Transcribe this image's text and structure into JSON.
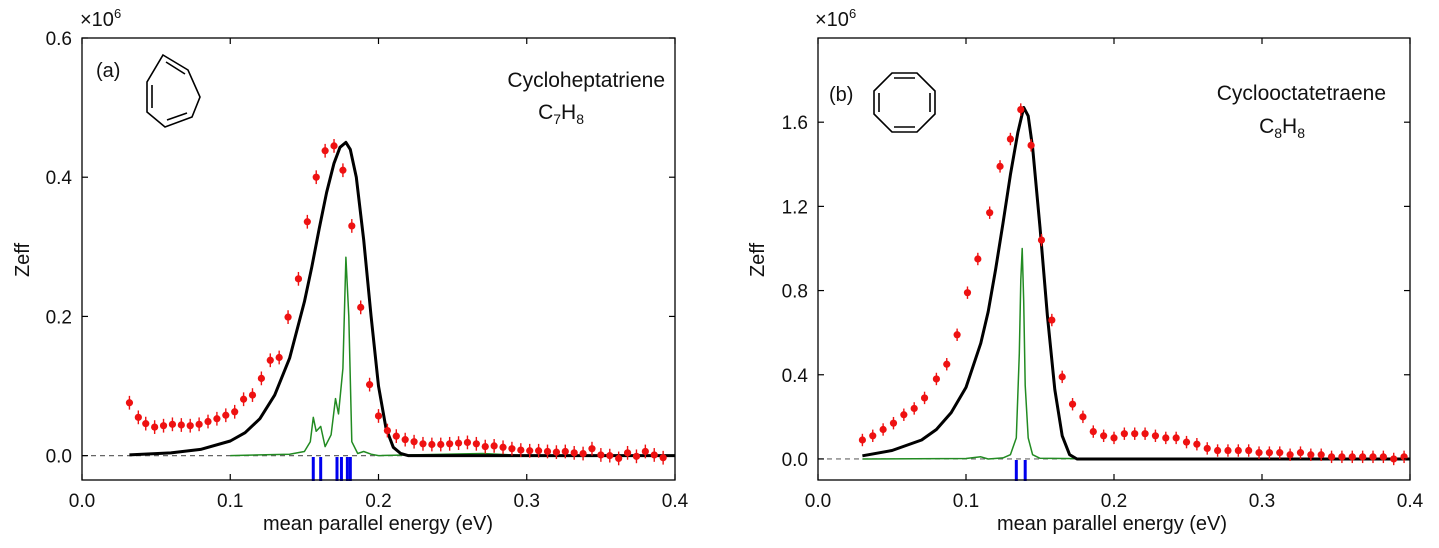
{
  "figure": {
    "xlabel": "mean parallel energy (eV)",
    "ylabel": "Zeff",
    "multiplier_text": "×10",
    "multiplier_exp": "6"
  },
  "chart_data": [
    {
      "panel_label": "(a)",
      "type": "line",
      "title": "Cycloheptatriene",
      "formula": [
        "C",
        "7",
        "H",
        "8"
      ],
      "xlabel": "mean parallel energy (eV)",
      "ylabel": "Zeff",
      "xlim": [
        0.0,
        0.4
      ],
      "ylim": [
        -0.035,
        0.6
      ],
      "y_multiplier": "1e6",
      "xticks": [
        0.0,
        0.1,
        0.2,
        0.3,
        0.4
      ],
      "xtick_labels": [
        "0.0",
        "0.1",
        "0.2",
        "0.3",
        "0.4"
      ],
      "yticks": [
        0.0,
        0.2,
        0.4,
        0.6
      ],
      "ytick_labels": [
        "0.0",
        "0.2",
        "0.4",
        "0.6"
      ],
      "colors": {
        "points": "#ee1111",
        "black_curve": "#000000",
        "green_curve": "#228b22",
        "blue_sticks": "#0000ee"
      },
      "series": [
        {
          "name": "experimental data",
          "style": "points with error bars",
          "points": [
            [
              0.032,
              0.076
            ],
            [
              0.038,
              0.055
            ],
            [
              0.043,
              0.046
            ],
            [
              0.049,
              0.041
            ],
            [
              0.055,
              0.043
            ],
            [
              0.061,
              0.045
            ],
            [
              0.067,
              0.044
            ],
            [
              0.073,
              0.043
            ],
            [
              0.079,
              0.045
            ],
            [
              0.085,
              0.049
            ],
            [
              0.091,
              0.053
            ],
            [
              0.097,
              0.058
            ],
            [
              0.103,
              0.063
            ],
            [
              0.109,
              0.081
            ],
            [
              0.115,
              0.087
            ],
            [
              0.121,
              0.111
            ],
            [
              0.127,
              0.137
            ],
            [
              0.133,
              0.141
            ],
            [
              0.139,
              0.199
            ],
            [
              0.146,
              0.254
            ],
            [
              0.152,
              0.336
            ],
            [
              0.158,
              0.4
            ],
            [
              0.164,
              0.438
            ],
            [
              0.17,
              0.445
            ],
            [
              0.176,
              0.41
            ],
            [
              0.182,
              0.33
            ],
            [
              0.188,
              0.213
            ],
            [
              0.194,
              0.102
            ],
            [
              0.2,
              0.057
            ],
            [
              0.206,
              0.036
            ],
            [
              0.212,
              0.028
            ],
            [
              0.218,
              0.023
            ],
            [
              0.224,
              0.02
            ],
            [
              0.23,
              0.017
            ],
            [
              0.236,
              0.016
            ],
            [
              0.242,
              0.016
            ],
            [
              0.248,
              0.017
            ],
            [
              0.254,
              0.018
            ],
            [
              0.26,
              0.019
            ],
            [
              0.266,
              0.017
            ],
            [
              0.272,
              0.013
            ],
            [
              0.278,
              0.014
            ],
            [
              0.284,
              0.012
            ],
            [
              0.29,
              0.01
            ],
            [
              0.296,
              0.008
            ],
            [
              0.302,
              0.007
            ],
            [
              0.308,
              0.007
            ],
            [
              0.314,
              0.006
            ],
            [
              0.32,
              0.005
            ],
            [
              0.326,
              0.006
            ],
            [
              0.332,
              0.004
            ],
            [
              0.338,
              0.003
            ],
            [
              0.344,
              0.01
            ],
            [
              0.35,
              0.001
            ],
            [
              0.356,
              0.0
            ],
            [
              0.362,
              -0.004
            ],
            [
              0.368,
              0.004
            ],
            [
              0.374,
              -0.001
            ],
            [
              0.38,
              0.006
            ],
            [
              0.386,
              0.001
            ],
            [
              0.392,
              -0.003
            ]
          ]
        },
        {
          "name": "black model curve",
          "style": "thick line",
          "points": [
            [
              0.032,
              0.001
            ],
            [
              0.06,
              0.004
            ],
            [
              0.08,
              0.009
            ],
            [
              0.1,
              0.021
            ],
            [
              0.11,
              0.033
            ],
            [
              0.12,
              0.053
            ],
            [
              0.13,
              0.087
            ],
            [
              0.14,
              0.14
            ],
            [
              0.15,
              0.221
            ],
            [
              0.155,
              0.271
            ],
            [
              0.16,
              0.326
            ],
            [
              0.165,
              0.378
            ],
            [
              0.17,
              0.42
            ],
            [
              0.174,
              0.443
            ],
            [
              0.178,
              0.45
            ],
            [
              0.181,
              0.44
            ],
            [
              0.185,
              0.4
            ],
            [
              0.19,
              0.31
            ],
            [
              0.195,
              0.2
            ],
            [
              0.2,
              0.1
            ],
            [
              0.205,
              0.04
            ],
            [
              0.21,
              0.012
            ],
            [
              0.215,
              0.003
            ],
            [
              0.22,
              0.0
            ],
            [
              0.3,
              0.0
            ],
            [
              0.4,
              0.0
            ]
          ]
        },
        {
          "name": "green spectrum",
          "style": "thin line",
          "points": [
            [
              0.1,
              0.0
            ],
            [
              0.14,
              0.002
            ],
            [
              0.15,
              0.006
            ],
            [
              0.154,
              0.02
            ],
            [
              0.156,
              0.055
            ],
            [
              0.158,
              0.035
            ],
            [
              0.161,
              0.042
            ],
            [
              0.164,
              0.013
            ],
            [
              0.168,
              0.03
            ],
            [
              0.171,
              0.082
            ],
            [
              0.173,
              0.06
            ],
            [
              0.176,
              0.125
            ],
            [
              0.178,
              0.285
            ],
            [
              0.18,
              0.2
            ],
            [
              0.182,
              0.02
            ],
            [
              0.186,
              0.003
            ],
            [
              0.19,
              0.006
            ],
            [
              0.195,
              0.002
            ],
            [
              0.2,
              0.0
            ],
            [
              0.27,
              0.003
            ],
            [
              0.3,
              0.0
            ]
          ]
        },
        {
          "name": "blue sticks",
          "style": "vertical bars",
          "x": [
            0.156,
            0.161,
            0.172,
            0.175,
            0.179,
            0.181
          ]
        }
      ]
    },
    {
      "panel_label": "(b)",
      "type": "line",
      "title": "Cyclooctatetraene",
      "formula": [
        "C",
        "8",
        "H",
        "8"
      ],
      "xlabel": "mean parallel energy (eV)",
      "ylabel": "Zeff",
      "xlim": [
        0.0,
        0.4
      ],
      "ylim": [
        -0.1,
        2.0
      ],
      "y_multiplier": "1e6",
      "xticks": [
        0.0,
        0.1,
        0.2,
        0.3,
        0.4
      ],
      "xtick_labels": [
        "0.0",
        "0.1",
        "0.2",
        "0.3",
        "0.4"
      ],
      "yticks": [
        0.0,
        0.4,
        0.8,
        1.2,
        1.6
      ],
      "ytick_labels": [
        "0.0",
        "0.4",
        "0.8",
        "1.2",
        "1.6"
      ],
      "colors": {
        "points": "#ee1111",
        "black_curve": "#000000",
        "green_curve": "#228b22",
        "blue_sticks": "#0000ee"
      },
      "series": [
        {
          "name": "experimental data",
          "style": "points with error bars",
          "points": [
            [
              0.03,
              0.09
            ],
            [
              0.037,
              0.11
            ],
            [
              0.044,
              0.14
            ],
            [
              0.051,
              0.17
            ],
            [
              0.058,
              0.21
            ],
            [
              0.065,
              0.24
            ],
            [
              0.072,
              0.29
            ],
            [
              0.08,
              0.38
            ],
            [
              0.087,
              0.45
            ],
            [
              0.094,
              0.59
            ],
            [
              0.101,
              0.79
            ],
            [
              0.108,
              0.95
            ],
            [
              0.116,
              1.17
            ],
            [
              0.123,
              1.39
            ],
            [
              0.13,
              1.52
            ],
            [
              0.137,
              1.66
            ],
            [
              0.144,
              1.49
            ],
            [
              0.151,
              1.04
            ],
            [
              0.158,
              0.66
            ],
            [
              0.165,
              0.39
            ],
            [
              0.172,
              0.26
            ],
            [
              0.179,
              0.2
            ],
            [
              0.186,
              0.13
            ],
            [
              0.193,
              0.11
            ],
            [
              0.2,
              0.1
            ],
            [
              0.207,
              0.12
            ],
            [
              0.214,
              0.12
            ],
            [
              0.221,
              0.12
            ],
            [
              0.228,
              0.11
            ],
            [
              0.235,
              0.1
            ],
            [
              0.242,
              0.1
            ],
            [
              0.249,
              0.08
            ],
            [
              0.256,
              0.07
            ],
            [
              0.263,
              0.05
            ],
            [
              0.27,
              0.04
            ],
            [
              0.277,
              0.04
            ],
            [
              0.284,
              0.04
            ],
            [
              0.291,
              0.04
            ],
            [
              0.298,
              0.03
            ],
            [
              0.305,
              0.03
            ],
            [
              0.312,
              0.03
            ],
            [
              0.319,
              0.02
            ],
            [
              0.326,
              0.03
            ],
            [
              0.333,
              0.02
            ],
            [
              0.34,
              0.02
            ],
            [
              0.347,
              0.01
            ],
            [
              0.354,
              0.01
            ],
            [
              0.361,
              0.01
            ],
            [
              0.368,
              0.01
            ],
            [
              0.375,
              0.01
            ],
            [
              0.382,
              0.01
            ],
            [
              0.389,
              0.0
            ],
            [
              0.396,
              0.01
            ]
          ]
        },
        {
          "name": "black model curve",
          "style": "thick line",
          "points": [
            [
              0.03,
              0.015
            ],
            [
              0.05,
              0.04
            ],
            [
              0.07,
              0.09
            ],
            [
              0.08,
              0.14
            ],
            [
              0.09,
              0.22
            ],
            [
              0.1,
              0.34
            ],
            [
              0.11,
              0.55
            ],
            [
              0.115,
              0.7
            ],
            [
              0.12,
              0.9
            ],
            [
              0.125,
              1.12
            ],
            [
              0.13,
              1.35
            ],
            [
              0.135,
              1.55
            ],
            [
              0.139,
              1.67
            ],
            [
              0.142,
              1.63
            ],
            [
              0.145,
              1.48
            ],
            [
              0.15,
              1.1
            ],
            [
              0.155,
              0.68
            ],
            [
              0.16,
              0.33
            ],
            [
              0.165,
              0.11
            ],
            [
              0.17,
              0.02
            ],
            [
              0.175,
              0.0
            ],
            [
              0.4,
              0.0
            ]
          ]
        },
        {
          "name": "green spectrum",
          "style": "thin line",
          "points": [
            [
              0.03,
              0.0
            ],
            [
              0.1,
              0.002
            ],
            [
              0.11,
              0.01
            ],
            [
              0.115,
              0.0
            ],
            [
              0.125,
              0.005
            ],
            [
              0.13,
              0.02
            ],
            [
              0.134,
              0.1
            ],
            [
              0.136,
              0.5
            ],
            [
              0.137,
              0.85
            ],
            [
              0.138,
              1.0
            ],
            [
              0.139,
              0.75
            ],
            [
              0.14,
              0.35
            ],
            [
              0.142,
              0.1
            ],
            [
              0.145,
              0.02
            ],
            [
              0.15,
              0.003
            ],
            [
              0.2,
              0.0
            ]
          ]
        },
        {
          "name": "blue sticks",
          "style": "vertical bars",
          "x": [
            0.134,
            0.14
          ]
        }
      ]
    }
  ]
}
